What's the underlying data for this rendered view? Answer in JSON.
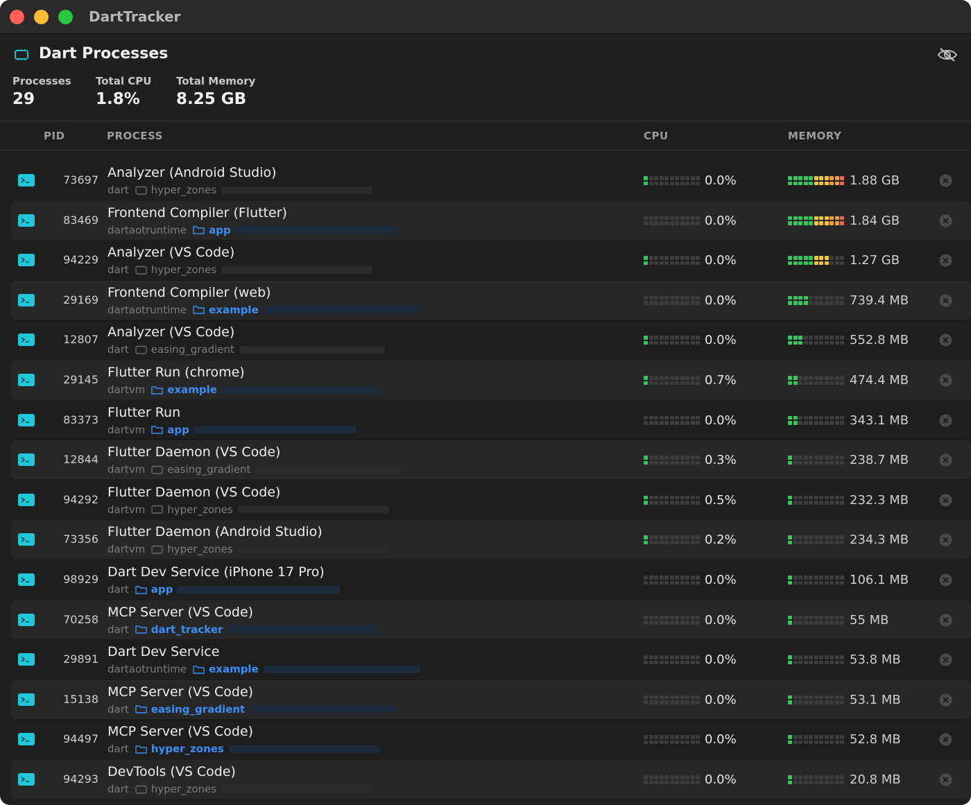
{
  "app": {
    "title": "DartTracker"
  },
  "header": {
    "title": "Dart Processes",
    "stats": [
      {
        "label": "Processes",
        "value": "29"
      },
      {
        "label": "Total CPU",
        "value": "1.8%"
      },
      {
        "label": "Total Memory",
        "value": "8.25 GB"
      }
    ]
  },
  "columns": {
    "pid": "PID",
    "process": "PROCESS",
    "cpu": "CPU",
    "memory": "MEMORY"
  },
  "meter_colors": {
    "green": "#34c759",
    "yellow": "#f2c832",
    "orange": "#f5a030",
    "red": "#f0625a",
    "empty": "#3d3d3f",
    "accent": "#1fc9d9",
    "link": "#3a8ef5"
  },
  "processes": [
    {
      "pid": "73697",
      "name": "Analyzer (Android Studio)",
      "runtime": "dart",
      "project": "hyper_zones",
      "linked": false,
      "cpu": "0.0%",
      "cpu_level": 1,
      "memory": "1.88 GB",
      "mem_level": 11
    },
    {
      "pid": "83469",
      "name": "Frontend Compiler (Flutter)",
      "runtime": "dartaotruntime",
      "project": "app",
      "linked": true,
      "cpu": "0.0%",
      "cpu_level": 0,
      "memory": "1.84 GB",
      "mem_level": 11
    },
    {
      "pid": "94229",
      "name": "Analyzer (VS Code)",
      "runtime": "dart",
      "project": "hyper_zones",
      "linked": false,
      "cpu": "0.0%",
      "cpu_level": 1,
      "memory": "1.27 GB",
      "mem_level": 8
    },
    {
      "pid": "29169",
      "name": "Frontend Compiler (web)",
      "runtime": "dartaotruntime",
      "project": "example",
      "linked": true,
      "cpu": "0.0%",
      "cpu_level": 0,
      "memory": "739.4 MB",
      "mem_level": 4
    },
    {
      "pid": "12807",
      "name": "Analyzer (VS Code)",
      "runtime": "dart",
      "project": "easing_gradient",
      "linked": false,
      "cpu": "0.0%",
      "cpu_level": 1,
      "memory": "552.8 MB",
      "mem_level": 3
    },
    {
      "pid": "29145",
      "name": "Flutter Run (chrome)",
      "runtime": "dartvm",
      "project": "example",
      "linked": true,
      "cpu": "0.7%",
      "cpu_level": 1,
      "memory": "474.4 MB",
      "mem_level": 2
    },
    {
      "pid": "83373",
      "name": "Flutter Run",
      "runtime": "dartvm",
      "project": "app",
      "linked": true,
      "cpu": "0.0%",
      "cpu_level": 0,
      "memory": "343.1 MB",
      "mem_level": 2
    },
    {
      "pid": "12844",
      "name": "Flutter Daemon (VS Code)",
      "runtime": "dartvm",
      "project": "easing_gradient",
      "linked": false,
      "cpu": "0.3%",
      "cpu_level": 1,
      "memory": "238.7 MB",
      "mem_level": 1
    },
    {
      "pid": "94292",
      "name": "Flutter Daemon (VS Code)",
      "runtime": "dartvm",
      "project": "hyper_zones",
      "linked": false,
      "cpu": "0.5%",
      "cpu_level": 1,
      "memory": "232.3 MB",
      "mem_level": 1
    },
    {
      "pid": "73356",
      "name": "Flutter Daemon (Android Studio)",
      "runtime": "dartvm",
      "project": "hyper_zones",
      "linked": false,
      "cpu": "0.2%",
      "cpu_level": 1,
      "memory": "234.3 MB",
      "mem_level": 1
    },
    {
      "pid": "98929",
      "name": "Dart Dev Service (iPhone 17 Pro)",
      "runtime": "dart",
      "project": "app",
      "linked": true,
      "cpu": "0.0%",
      "cpu_level": 0,
      "memory": "106.1 MB",
      "mem_level": 1
    },
    {
      "pid": "70258",
      "name": "MCP Server (VS Code)",
      "runtime": "dart",
      "project": "dart_tracker",
      "linked": true,
      "cpu": "0.0%",
      "cpu_level": 0,
      "memory": "55 MB",
      "mem_level": 1
    },
    {
      "pid": "29891",
      "name": "Dart Dev Service",
      "runtime": "dartaotruntime",
      "project": "example",
      "linked": true,
      "cpu": "0.0%",
      "cpu_level": 0,
      "memory": "53.8 MB",
      "mem_level": 1
    },
    {
      "pid": "15138",
      "name": "MCP Server (VS Code)",
      "runtime": "dart",
      "project": "easing_gradient",
      "linked": true,
      "cpu": "0.0%",
      "cpu_level": 0,
      "memory": "53.1 MB",
      "mem_level": 1
    },
    {
      "pid": "94497",
      "name": "MCP Server (VS Code)",
      "runtime": "dart",
      "project": "hyper_zones",
      "linked": true,
      "cpu": "0.0%",
      "cpu_level": 0,
      "memory": "52.8 MB",
      "mem_level": 1
    },
    {
      "pid": "94293",
      "name": "DevTools (VS Code)",
      "runtime": "dart",
      "project": "hyper_zones",
      "linked": false,
      "cpu": "0.0%",
      "cpu_level": 0,
      "memory": "20.8 MB",
      "mem_level": 1
    }
  ]
}
